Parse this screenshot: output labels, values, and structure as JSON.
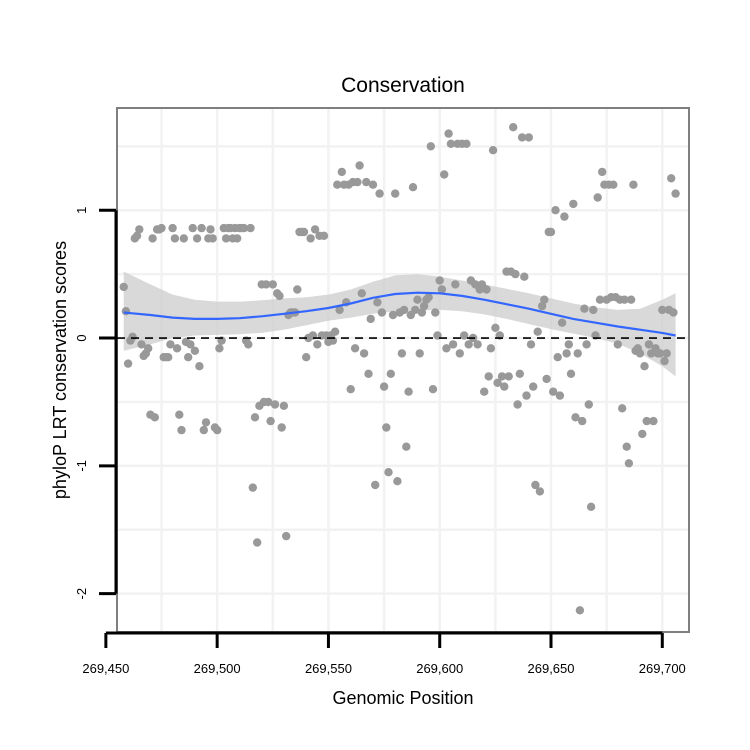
{
  "chart_data": {
    "type": "scatter",
    "title": "Conservation",
    "xlabel": "Genomic Position",
    "ylabel": "phyloP LRT conservation scores",
    "xlim": [
      269455,
      269712
    ],
    "ylim": [
      -2.3,
      1.8
    ],
    "x_ticks": [
      269450,
      269500,
      269550,
      269600,
      269650,
      269700
    ],
    "x_tick_labels": [
      "269,450",
      "269,500",
      "269,550",
      "269,600",
      "269,650",
      "269,700"
    ],
    "y_ticks": [
      -2,
      -1,
      0,
      1
    ],
    "y_tick_labels": [
      "-2",
      "-1",
      "0",
      "1"
    ],
    "grid": true,
    "reference_line": {
      "y": 0,
      "style": "dashed"
    },
    "colors": {
      "points": "#999999",
      "smooth": "#3366ff",
      "band": "#cccccc",
      "panel_border": "#7f7f7f",
      "grid": "#f2f2f2"
    },
    "points": [
      [
        269458,
        0.4
      ],
      [
        269459,
        0.21
      ],
      [
        269460,
        -0.2
      ],
      [
        269461,
        -0.02
      ],
      [
        269462,
        0.01
      ],
      [
        269463,
        0.78
      ],
      [
        269464,
        0.8
      ],
      [
        269465,
        0.85
      ],
      [
        269466,
        -0.05
      ],
      [
        269467,
        -0.14
      ],
      [
        269468,
        -0.12
      ],
      [
        269469,
        -0.08
      ],
      [
        269470,
        -0.6
      ],
      [
        269471,
        0.78
      ],
      [
        269472,
        -0.62
      ],
      [
        269473,
        0.85
      ],
      [
        269474,
        0.85
      ],
      [
        269475,
        0.86
      ],
      [
        269476,
        -0.15
      ],
      [
        269477,
        -0.15
      ],
      [
        269478,
        -0.15
      ],
      [
        269479,
        -0.05
      ],
      [
        269480,
        0.86
      ],
      [
        269481,
        0.78
      ],
      [
        269482,
        -0.08
      ],
      [
        269483,
        -0.6
      ],
      [
        269484,
        -0.72
      ],
      [
        269485,
        0.78
      ],
      [
        269486,
        -0.03
      ],
      [
        269487,
        -0.15
      ],
      [
        269488,
        -0.05
      ],
      [
        269489,
        0.86
      ],
      [
        269490,
        -0.1
      ],
      [
        269491,
        0.78
      ],
      [
        269492,
        -0.22
      ],
      [
        269493,
        0.86
      ],
      [
        269494,
        -0.72
      ],
      [
        269495,
        -0.66
      ],
      [
        269496,
        0.78
      ],
      [
        269497,
        0.85
      ],
      [
        269498,
        0.78
      ],
      [
        269499,
        -0.7
      ],
      [
        269500,
        -0.72
      ],
      [
        269501,
        -0.08
      ],
      [
        269502,
        -0.02
      ],
      [
        269503,
        0.86
      ],
      [
        269504,
        0.78
      ],
      [
        269505,
        0.86
      ],
      [
        269506,
        0.86
      ],
      [
        269507,
        0.78
      ],
      [
        269508,
        0.86
      ],
      [
        269509,
        0.78
      ],
      [
        269510,
        0.86
      ],
      [
        269511,
        0.86
      ],
      [
        269512,
        0.86
      ],
      [
        269513,
        -0.02
      ],
      [
        269514,
        -0.05
      ],
      [
        269515,
        0.86
      ],
      [
        269516,
        -1.17
      ],
      [
        269517,
        -0.62
      ],
      [
        269518,
        -1.6
      ],
      [
        269519,
        -0.53
      ],
      [
        269520,
        0.42
      ],
      [
        269521,
        -0.5
      ],
      [
        269522,
        0.42
      ],
      [
        269523,
        -0.5
      ],
      [
        269524,
        -0.65
      ],
      [
        269525,
        0.42
      ],
      [
        269526,
        -0.52
      ],
      [
        269527,
        0.35
      ],
      [
        269528,
        0.33
      ],
      [
        269529,
        -0.7
      ],
      [
        269530,
        -0.53
      ],
      [
        269531,
        -1.55
      ],
      [
        269532,
        0.18
      ],
      [
        269533,
        0.2
      ],
      [
        269534,
        0.2
      ],
      [
        269535,
        0.2
      ],
      [
        269536,
        0.38
      ],
      [
        269537,
        0.83
      ],
      [
        269538,
        0.83
      ],
      [
        269539,
        0.83
      ],
      [
        269540,
        -0.15
      ],
      [
        269541,
        0.0
      ],
      [
        269542,
        0.78
      ],
      [
        269543,
        0.02
      ],
      [
        269544,
        0.85
      ],
      [
        269545,
        -0.05
      ],
      [
        269546,
        0.8
      ],
      [
        269547,
        0.02
      ],
      [
        269548,
        0.8
      ],
      [
        269549,
        0.02
      ],
      [
        269550,
        -0.03
      ],
      [
        269551,
        0.02
      ],
      [
        269552,
        -0.02
      ],
      [
        269553,
        0.05
      ],
      [
        269554,
        1.2
      ],
      [
        269555,
        0.22
      ],
      [
        269556,
        1.3
      ],
      [
        269557,
        1.2
      ],
      [
        269558,
        0.28
      ],
      [
        269559,
        1.2
      ],
      [
        269560,
        -0.4
      ],
      [
        269561,
        1.22
      ],
      [
        269562,
        -0.08
      ],
      [
        269563,
        1.22
      ],
      [
        269564,
        1.35
      ],
      [
        269565,
        0.35
      ],
      [
        269566,
        -0.12
      ],
      [
        269567,
        1.22
      ],
      [
        269568,
        -0.28
      ],
      [
        269569,
        0.15
      ],
      [
        269570,
        1.2
      ],
      [
        269571,
        -1.15
      ],
      [
        269572,
        0.28
      ],
      [
        269573,
        1.13
      ],
      [
        269574,
        0.2
      ],
      [
        269575,
        -0.38
      ],
      [
        269576,
        -0.7
      ],
      [
        269577,
        -1.05
      ],
      [
        269578,
        -0.28
      ],
      [
        269579,
        0.18
      ],
      [
        269580,
        1.13
      ],
      [
        269581,
        -1.12
      ],
      [
        269582,
        0.2
      ],
      [
        269583,
        -0.12
      ],
      [
        269584,
        0.22
      ],
      [
        269585,
        -0.85
      ],
      [
        269586,
        -0.42
      ],
      [
        269587,
        0.18
      ],
      [
        269588,
        1.18
      ],
      [
        269589,
        0.22
      ],
      [
        269590,
        0.3
      ],
      [
        269591,
        -0.12
      ],
      [
        269592,
        0.2
      ],
      [
        269593,
        0.25
      ],
      [
        269594,
        0.3
      ],
      [
        269595,
        0.32
      ],
      [
        269596,
        1.5
      ],
      [
        269597,
        -0.4
      ],
      [
        269598,
        0.2
      ],
      [
        269599,
        0.02
      ],
      [
        269600,
        0.45
      ],
      [
        269601,
        0.38
      ],
      [
        269602,
        1.28
      ],
      [
        269603,
        -0.08
      ],
      [
        269604,
        1.6
      ],
      [
        269605,
        1.52
      ],
      [
        269606,
        -0.05
      ],
      [
        269607,
        0.42
      ],
      [
        269608,
        1.52
      ],
      [
        269609,
        -0.12
      ],
      [
        269610,
        1.52
      ],
      [
        269611,
        0.02
      ],
      [
        269612,
        1.52
      ],
      [
        269613,
        -0.05
      ],
      [
        269614,
        0.45
      ],
      [
        269615,
        0.0
      ],
      [
        269616,
        0.42
      ],
      [
        269617,
        -0.05
      ],
      [
        269618,
        0.38
      ],
      [
        269619,
        0.42
      ],
      [
        269620,
        -0.42
      ],
      [
        269621,
        0.38
      ],
      [
        269622,
        -0.3
      ],
      [
        269623,
        -0.08
      ],
      [
        269624,
        1.47
      ],
      [
        269625,
        0.08
      ],
      [
        269626,
        -0.35
      ],
      [
        269627,
        0.02
      ],
      [
        269628,
        -0.3
      ],
      [
        269629,
        -0.38
      ],
      [
        269630,
        0.52
      ],
      [
        269631,
        -0.3
      ],
      [
        269632,
        0.52
      ],
      [
        269633,
        1.65
      ],
      [
        269634,
        0.5
      ],
      [
        269635,
        -0.52
      ],
      [
        269636,
        -0.28
      ],
      [
        269637,
        1.57
      ],
      [
        269638,
        0.48
      ],
      [
        269639,
        -0.45
      ],
      [
        269640,
        1.57
      ],
      [
        269641,
        -0.05
      ],
      [
        269642,
        -0.38
      ],
      [
        269643,
        -1.15
      ],
      [
        269644,
        0.05
      ],
      [
        269645,
        -1.2
      ],
      [
        269646,
        0.25
      ],
      [
        269647,
        0.3
      ],
      [
        269648,
        -0.32
      ],
      [
        269649,
        0.83
      ],
      [
        269650,
        0.83
      ],
      [
        269651,
        -0.42
      ],
      [
        269652,
        1.0
      ],
      [
        269653,
        -0.15
      ],
      [
        269654,
        -0.45
      ],
      [
        269655,
        0.12
      ],
      [
        269656,
        0.95
      ],
      [
        269657,
        -0.12
      ],
      [
        269658,
        -0.05
      ],
      [
        269659,
        -0.28
      ],
      [
        269660,
        1.05
      ],
      [
        269661,
        -0.62
      ],
      [
        269662,
        -0.12
      ],
      [
        269663,
        -2.13
      ],
      [
        269664,
        -0.65
      ],
      [
        269665,
        0.23
      ],
      [
        269666,
        -0.05
      ],
      [
        269667,
        -0.52
      ],
      [
        269668,
        -1.32
      ],
      [
        269669,
        0.22
      ],
      [
        269670,
        0.02
      ],
      [
        269671,
        1.1
      ],
      [
        269672,
        0.3
      ],
      [
        269673,
        1.3
      ],
      [
        269674,
        1.2
      ],
      [
        269675,
        0.3
      ],
      [
        269676,
        1.2
      ],
      [
        269677,
        0.32
      ],
      [
        269678,
        1.2
      ],
      [
        269679,
        0.32
      ],
      [
        269680,
        -0.05
      ],
      [
        269681,
        0.3
      ],
      [
        269682,
        -0.55
      ],
      [
        269683,
        0.3
      ],
      [
        269684,
        -0.85
      ],
      [
        269685,
        -0.98
      ],
      [
        269686,
        0.3
      ],
      [
        269687,
        1.2
      ],
      [
        269688,
        -0.1
      ],
      [
        269689,
        -0.08
      ],
      [
        269690,
        -0.12
      ],
      [
        269691,
        -0.75
      ],
      [
        269692,
        -0.22
      ],
      [
        269693,
        -0.65
      ],
      [
        269694,
        -0.05
      ],
      [
        269695,
        -0.12
      ],
      [
        269696,
        -0.65
      ],
      [
        269697,
        -0.08
      ],
      [
        269698,
        -0.12
      ],
      [
        269699,
        -0.12
      ],
      [
        269700,
        0.22
      ],
      [
        269701,
        -0.18
      ],
      [
        269702,
        -0.12
      ],
      [
        269703,
        0.22
      ],
      [
        269704,
        1.25
      ],
      [
        269705,
        0.2
      ],
      [
        269706,
        1.13
      ]
    ],
    "smooth": [
      [
        269458,
        0.2
      ],
      [
        269470,
        0.18
      ],
      [
        269480,
        0.16
      ],
      [
        269490,
        0.15
      ],
      [
        269500,
        0.15
      ],
      [
        269510,
        0.155
      ],
      [
        269520,
        0.17
      ],
      [
        269530,
        0.19
      ],
      [
        269540,
        0.21
      ],
      [
        269550,
        0.235
      ],
      [
        269560,
        0.27
      ],
      [
        269570,
        0.315
      ],
      [
        269580,
        0.345
      ],
      [
        269590,
        0.355
      ],
      [
        269600,
        0.35
      ],
      [
        269610,
        0.33
      ],
      [
        269620,
        0.3
      ],
      [
        269630,
        0.265
      ],
      [
        269640,
        0.23
      ],
      [
        269650,
        0.19
      ],
      [
        269660,
        0.15
      ],
      [
        269670,
        0.12
      ],
      [
        269680,
        0.09
      ],
      [
        269690,
        0.065
      ],
      [
        269700,
        0.04
      ],
      [
        269706,
        0.02
      ]
    ],
    "band_upper": [
      [
        269458,
        0.52
      ],
      [
        269470,
        0.42
      ],
      [
        269480,
        0.34
      ],
      [
        269490,
        0.3
      ],
      [
        269500,
        0.285
      ],
      [
        269510,
        0.285
      ],
      [
        269520,
        0.295
      ],
      [
        269530,
        0.31
      ],
      [
        269540,
        0.32
      ],
      [
        269550,
        0.34
      ],
      [
        269560,
        0.38
      ],
      [
        269570,
        0.44
      ],
      [
        269580,
        0.49
      ],
      [
        269590,
        0.5
      ],
      [
        269600,
        0.48
      ],
      [
        269610,
        0.45
      ],
      [
        269620,
        0.42
      ],
      [
        269630,
        0.385
      ],
      [
        269640,
        0.35
      ],
      [
        269650,
        0.31
      ],
      [
        269660,
        0.27
      ],
      [
        269670,
        0.24
      ],
      [
        269680,
        0.22
      ],
      [
        269690,
        0.23
      ],
      [
        269700,
        0.3
      ],
      [
        269706,
        0.35
      ]
    ],
    "band_lower": [
      [
        269458,
        -0.1
      ],
      [
        269470,
        -0.05
      ],
      [
        269480,
        0.0
      ],
      [
        269490,
        0.02
      ],
      [
        269500,
        0.025
      ],
      [
        269510,
        0.03
      ],
      [
        269520,
        0.04
      ],
      [
        269530,
        0.065
      ],
      [
        269540,
        0.1
      ],
      [
        269550,
        0.135
      ],
      [
        269560,
        0.16
      ],
      [
        269570,
        0.19
      ],
      [
        269580,
        0.21
      ],
      [
        269590,
        0.215
      ],
      [
        269600,
        0.22
      ],
      [
        269610,
        0.21
      ],
      [
        269620,
        0.185
      ],
      [
        269630,
        0.15
      ],
      [
        269640,
        0.11
      ],
      [
        269650,
        0.07
      ],
      [
        269660,
        0.035
      ],
      [
        269670,
        0.0
      ],
      [
        269680,
        -0.045
      ],
      [
        269690,
        -0.12
      ],
      [
        269700,
        -0.22
      ],
      [
        269706,
        -0.3
      ]
    ]
  }
}
